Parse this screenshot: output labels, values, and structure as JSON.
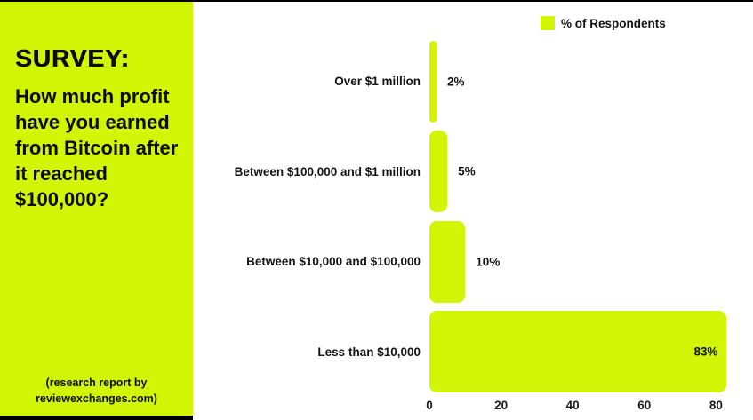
{
  "sidebar": {
    "title": "SURVEY:",
    "question": "How much profit have you earned from Bitcoin after it reached $100,000?",
    "footer_line1": "(research report by",
    "footer_line2": "reviewexchanges.com)"
  },
  "legend": {
    "label": "% of Respondents"
  },
  "colors": {
    "accent": "#d2f505",
    "text": "#0d0d0d",
    "background": "#ffffff"
  },
  "chart_data": {
    "type": "bar",
    "orientation": "horizontal",
    "title": "",
    "series_name": "% of Respondents",
    "categories": [
      "Over $1 million",
      "Between $100,000 and $1 million",
      "Between $10,000 and $100,000",
      "Less than $10,000"
    ],
    "values": [
      2,
      5,
      10,
      83
    ],
    "value_labels": [
      "2%",
      "5%",
      "10%",
      "83%"
    ],
    "xlim": [
      0,
      80
    ],
    "xticks": [
      0,
      20,
      40,
      60,
      80
    ],
    "bar_color": "#d2f505",
    "grid": false,
    "legend_position": "top-right",
    "value_label_inside": [
      false,
      false,
      false,
      true
    ]
  }
}
